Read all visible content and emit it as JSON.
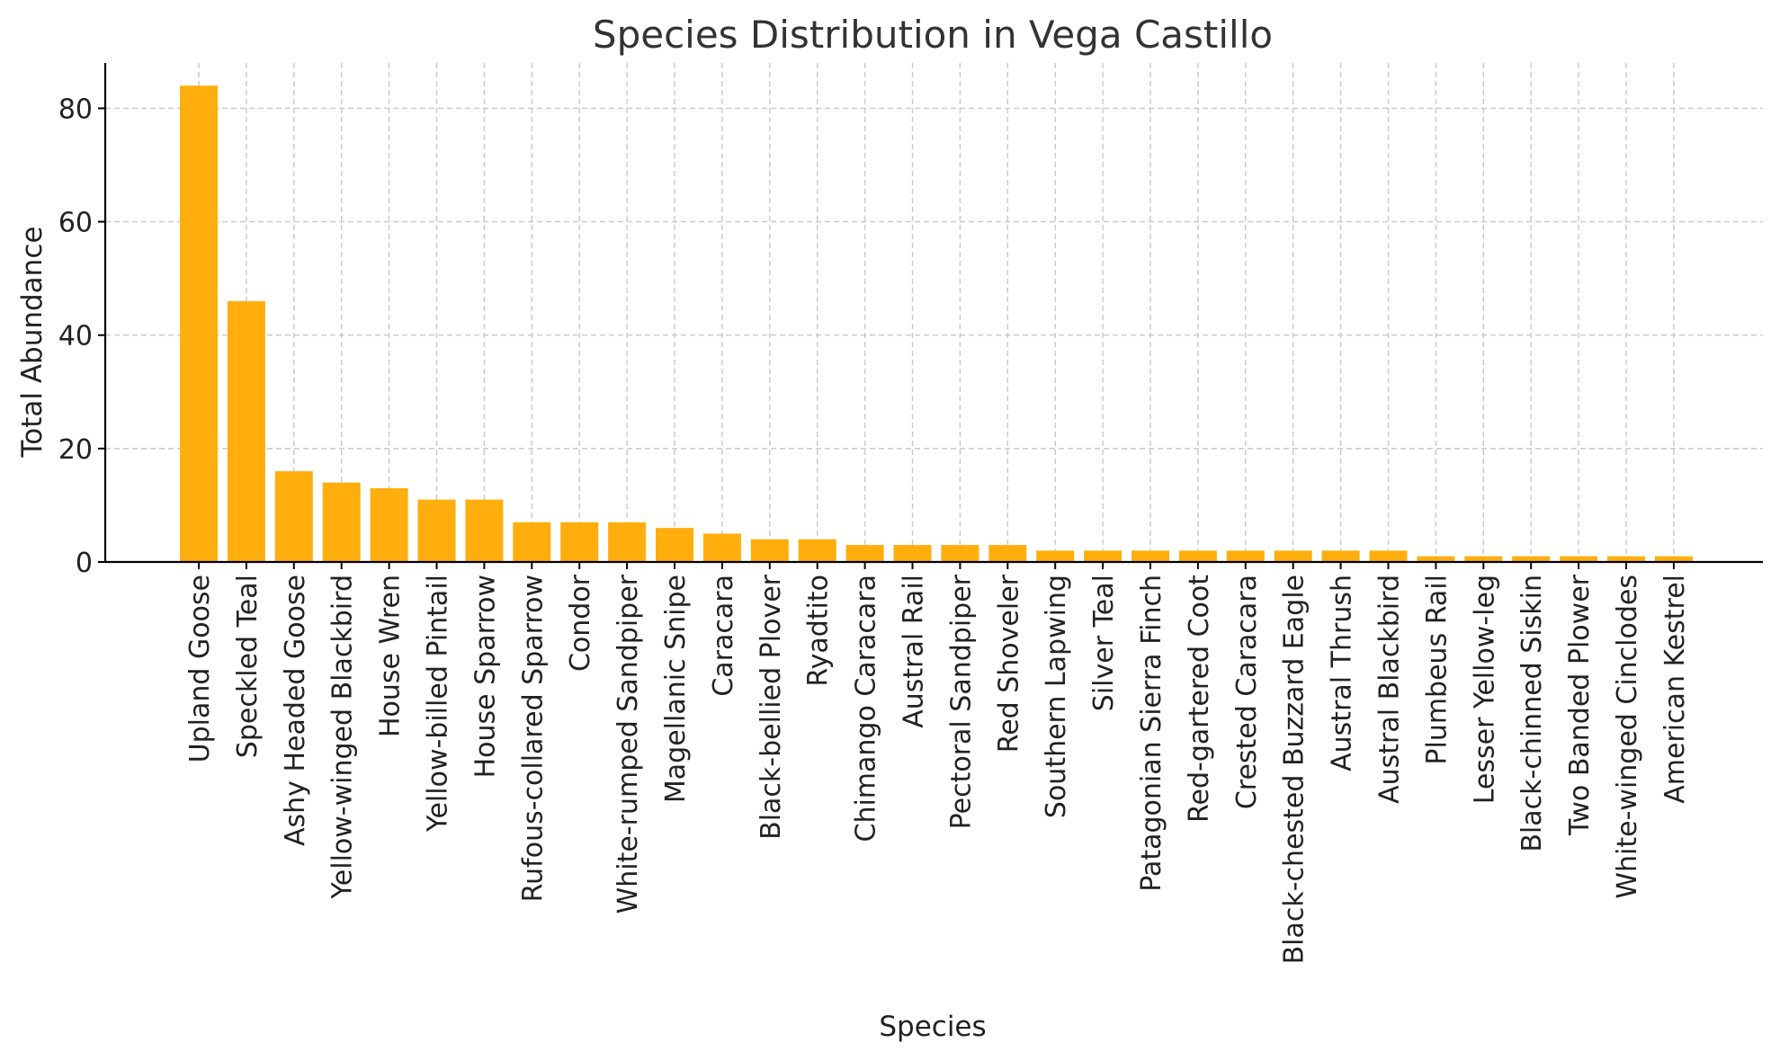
{
  "chart_data": {
    "type": "bar",
    "title": "Species Distribution in Vega Castillo",
    "xlabel": "Species",
    "ylabel": "Total Abundance",
    "ylim": [
      0,
      88
    ],
    "yticks": [
      0,
      20,
      40,
      60,
      80
    ],
    "grid": true,
    "bar_color": "#FFAE0D",
    "categories": [
      "Upland Goose",
      "Speckled Teal",
      "Ashy Headed Goose",
      "Yellow-winged Blackbird",
      "House Wren",
      "Yellow-billed Pintail",
      "House Sparrow",
      "Rufous-collared Sparrow",
      "Condor",
      "White-rumped Sandpiper",
      "Magellanic Snipe",
      "Caracara",
      "Black-bellied Plover",
      "Ryadtito",
      "Chimango Caracara",
      "Austral Rail",
      "Pectoral Sandpiper",
      "Red Shoveler",
      "Southern Lapwing",
      "Silver Teal",
      "Patagonian Sierra Finch",
      "Red-gartered Coot",
      "Crested Caracara",
      "Black-chested Buzzard Eagle",
      "Austral Thrush",
      "Austral Blackbird",
      "Plumbeus Rail",
      "Lesser Yellow-leg",
      "Black-chinned Siskin",
      "Two Banded Plower",
      "White-winged Cinclodes",
      "American Kestrel"
    ],
    "values": [
      84,
      46,
      16,
      14,
      13,
      11,
      11,
      7,
      7,
      7,
      6,
      5,
      4,
      4,
      3,
      3,
      3,
      3,
      2,
      2,
      2,
      2,
      2,
      2,
      2,
      2,
      1,
      1,
      1,
      1,
      1,
      1
    ]
  }
}
